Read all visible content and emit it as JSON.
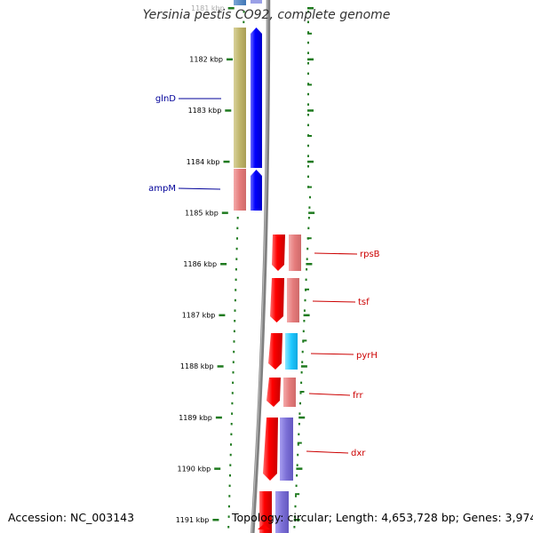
{
  "title": "Yersinia pestis CO92, complete genome",
  "footer": {
    "accession": "Accession: NC_003143",
    "topology": "Topology: circular; Length: 4,653,728 bp; Genes: 3,974"
  },
  "ruler": {
    "tick_labels": [
      "1181 kbp",
      "1182 kbp",
      "1183 kbp",
      "1184 kbp",
      "1185 kbp",
      "1186 kbp",
      "1187 kbp",
      "1188 kbp",
      "1189 kbp",
      "1190 kbp",
      "1191 kbp"
    ]
  },
  "genes_left": [
    {
      "name": "glnD",
      "color": "#0000ff"
    },
    {
      "name": "ampM",
      "color": "#0000ff"
    }
  ],
  "genes_right": [
    {
      "name": "rpsB",
      "color": "#ff0000",
      "category_color": "#e57b7b"
    },
    {
      "name": "tsf",
      "color": "#ff0000",
      "category_color": "#e57b7b"
    },
    {
      "name": "pyrH",
      "color": "#ff0000",
      "category_color": "#1ec8ff"
    },
    {
      "name": "frr",
      "color": "#ff0000",
      "category_color": "#e57b7b"
    },
    {
      "name": "dxr",
      "color": "#ff0000",
      "category_color": "#7b6fd6"
    }
  ],
  "colors": {
    "backbone": "#808080",
    "ticks": "#1f7a1f",
    "label_left": "#000099",
    "label_right": "#cc0000",
    "cog_olive": "#bfb56a"
  }
}
